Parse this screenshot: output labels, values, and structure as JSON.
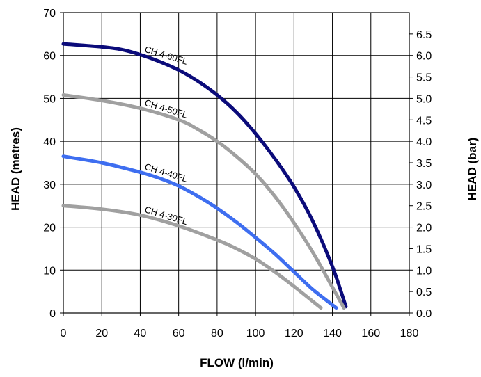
{
  "chart_data": {
    "type": "line",
    "xlabel": "FLOW (l/min)",
    "ylabel": "HEAD (metres)",
    "y2label": "HEAD (bar)",
    "xlim": [
      0,
      180
    ],
    "ylim": [
      0,
      70
    ],
    "y2lim": [
      0,
      7
    ],
    "xticks": [
      "0",
      "20",
      "40",
      "60",
      "80",
      "100",
      "120",
      "140",
      "160",
      "180"
    ],
    "yticks": [
      "0",
      "10",
      "20",
      "30",
      "40",
      "50",
      "60",
      "70"
    ],
    "y2ticks": [
      "0.0",
      "0.5",
      "1.0",
      "1.5",
      "2.0",
      "2.5",
      "3.0",
      "3.5",
      "4.0",
      "4.5",
      "5.0",
      "5.5",
      "6.0",
      "6.5"
    ],
    "grid": true,
    "series": [
      {
        "name": "CH 4-60FL",
        "color": "#0b0b7a",
        "x": [
          0,
          20,
          30,
          40,
          50,
          60,
          70,
          80,
          90,
          100,
          110,
          120,
          130,
          140,
          147
        ],
        "y": [
          62.7,
          62.0,
          61.4,
          60.2,
          58.6,
          56.6,
          54.0,
          50.8,
          46.8,
          41.8,
          36.0,
          29.4,
          21.2,
          10.8,
          1.5
        ]
      },
      {
        "name": "CH 4-50FL",
        "color": "#a0a0a0",
        "x": [
          0,
          20,
          40,
          60,
          70,
          80,
          90,
          100,
          110,
          120,
          130,
          140,
          146
        ],
        "y": [
          50.8,
          49.5,
          47.7,
          45.0,
          42.8,
          40.0,
          36.5,
          32.4,
          27.2,
          21.0,
          14.0,
          6.0,
          1.2
        ]
      },
      {
        "name": "CH 4-40FL",
        "color": "#3e6ef0",
        "x": [
          0,
          20,
          40,
          50,
          60,
          70,
          80,
          90,
          100,
          110,
          120,
          130,
          142
        ],
        "y": [
          36.5,
          35.0,
          32.8,
          31.4,
          29.6,
          27.2,
          24.4,
          21.2,
          17.6,
          13.8,
          9.6,
          5.4,
          1.2
        ]
      },
      {
        "name": "CH 4-30FL",
        "color": "#a0a0a0",
        "x": [
          0,
          20,
          40,
          60,
          80,
          90,
          100,
          110,
          120,
          134
        ],
        "y": [
          25.0,
          24.2,
          22.8,
          20.3,
          17.0,
          15.0,
          12.6,
          9.6,
          6.2,
          1.2
        ]
      }
    ]
  }
}
